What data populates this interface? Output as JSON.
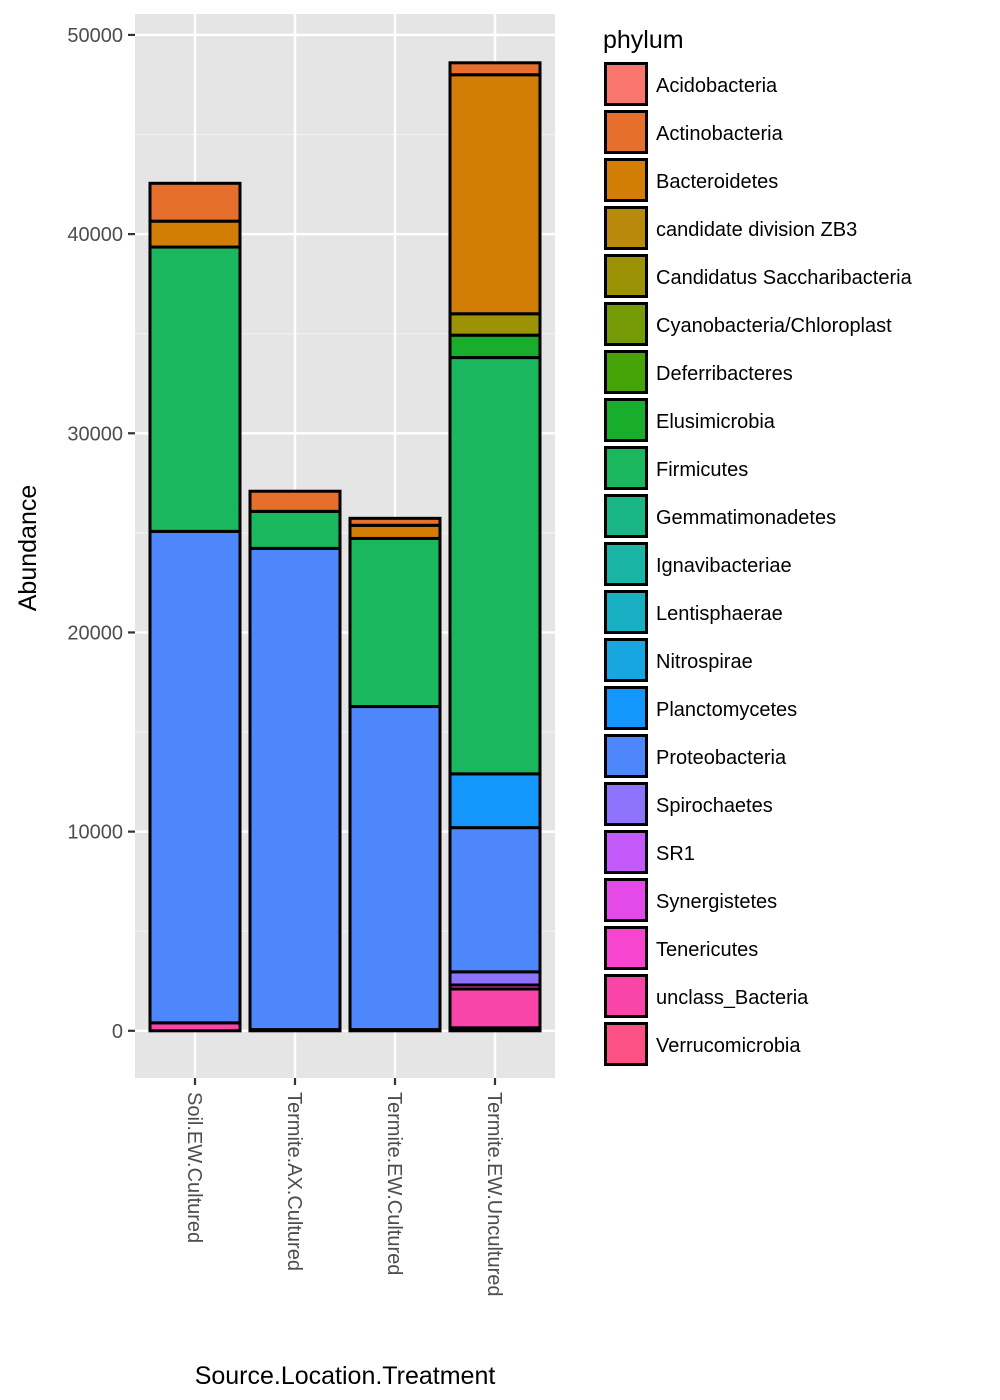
{
  "chart_data": {
    "type": "bar",
    "stacked": true,
    "title": "",
    "xlabel": "Source.Location.Treatment",
    "ylabel": "Abundance",
    "ylim": [
      -2370,
      51050
    ],
    "yticks": [
      0,
      10000,
      20000,
      30000,
      40000,
      50000
    ],
    "ytick_labels": [
      "0",
      "10000",
      "20000",
      "30000",
      "40000",
      "50000"
    ],
    "grid": true,
    "legend_position": "right",
    "legend_title": "phylum",
    "categories": [
      "Soil.EW.Cultured",
      "Termite.AX.Cultured",
      "Termite.EW.Cultured",
      "Termite.EW.Uncultured"
    ],
    "series": [
      {
        "name": "Acidobacteria",
        "color": "#F8766D",
        "values": [
          0,
          0,
          0,
          0
        ]
      },
      {
        "name": "Actinobacteria",
        "color": "#E76F2D",
        "values": [
          1900,
          1010,
          350,
          600
        ]
      },
      {
        "name": "Bacteroidetes",
        "color": "#D27D06",
        "values": [
          1300,
          0,
          660,
          12000
        ]
      },
      {
        "name": "candidate division ZB3",
        "color": "#B8890A",
        "values": [
          0,
          0,
          0,
          0
        ]
      },
      {
        "name": "Candidatus Saccharibacteria",
        "color": "#9B9205",
        "values": [
          0,
          0,
          0,
          1075
        ]
      },
      {
        "name": "Cyanobacteria/Chloroplast",
        "color": "#749B06",
        "values": [
          0,
          0,
          0,
          0
        ]
      },
      {
        "name": "Deferribacteres",
        "color": "#45A307",
        "values": [
          0,
          0,
          0,
          0
        ]
      },
      {
        "name": "Elusimicrobia",
        "color": "#18AD2A",
        "values": [
          0,
          0,
          0,
          1125
        ]
      },
      {
        "name": "Firmicutes",
        "color": "#1BB75E",
        "values": [
          14275,
          1860,
          8440,
          20900
        ]
      },
      {
        "name": "Gemmatimonadetes",
        "color": "#1BB686",
        "values": [
          0,
          0,
          0,
          0
        ]
      },
      {
        "name": "Ignavibacteriae",
        "color": "#1AB5A4",
        "values": [
          0,
          0,
          0,
          0
        ]
      },
      {
        "name": "Lentisphaerae",
        "color": "#18AFC2",
        "values": [
          0,
          0,
          0,
          0
        ]
      },
      {
        "name": "Nitrospirae",
        "color": "#17A6DF",
        "values": [
          0,
          0,
          0,
          0
        ]
      },
      {
        "name": "Planctomycetes",
        "color": "#1497FC",
        "values": [
          0,
          0,
          0,
          2700
        ]
      },
      {
        "name": "Proteobacteria",
        "color": "#4E86FC",
        "values": [
          24675,
          24160,
          16220,
          7240
        ]
      },
      {
        "name": "Spirochaetes",
        "color": "#8E74FC",
        "values": [
          0,
          0,
          0,
          660
        ]
      },
      {
        "name": "SR1",
        "color": "#C45AFA",
        "values": [
          0,
          0,
          0,
          0
        ]
      },
      {
        "name": "Synergistetes",
        "color": "#E44AE8",
        "values": [
          0,
          0,
          0,
          0
        ]
      },
      {
        "name": "Tenericutes",
        "color": "#F745D0",
        "values": [
          0,
          0,
          0,
          200
        ]
      },
      {
        "name": "unclass_Bacteria",
        "color": "#FA45A8",
        "values": [
          400,
          0,
          0,
          1950
        ]
      },
      {
        "name": "Verrucomicrobia",
        "color": "#FB5283",
        "values": [
          0,
          60,
          60,
          150
        ]
      }
    ]
  }
}
